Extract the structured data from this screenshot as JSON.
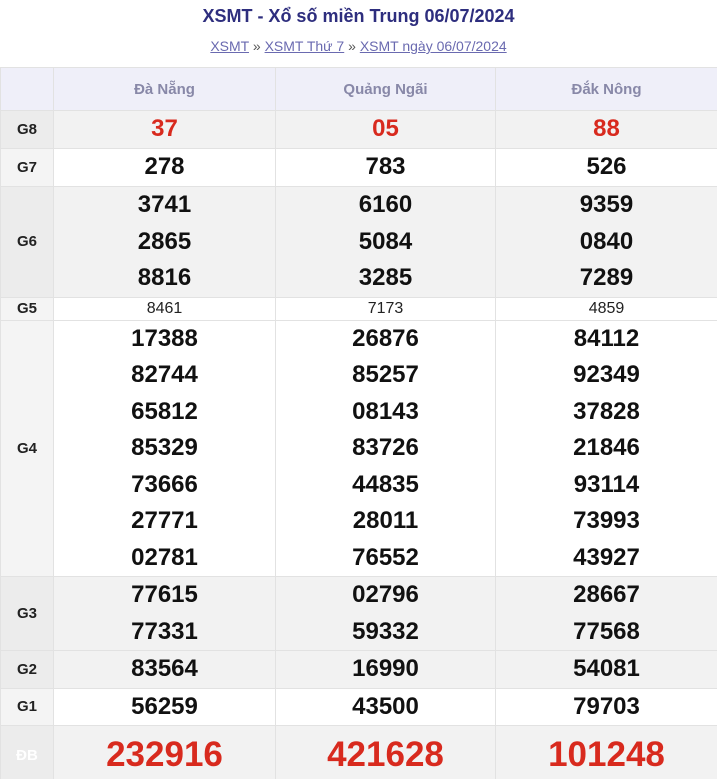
{
  "header": {
    "title": "XSMT - Xổ số miền Trung 06/07/2024",
    "breadcrumbs": [
      "XSMT",
      "XSMT Thứ 7",
      "XSMT ngày 06/07/2024"
    ]
  },
  "table": {
    "columns": [
      "Đà Nẵng",
      "Quảng Ngãi",
      "Đắk Nông"
    ],
    "rows": [
      {
        "label": "G8",
        "cells": [
          [
            "37"
          ],
          [
            "05"
          ],
          [
            "88"
          ]
        ]
      },
      {
        "label": "G7",
        "cells": [
          [
            "278"
          ],
          [
            "783"
          ],
          [
            "526"
          ]
        ]
      },
      {
        "label": "G6",
        "cells": [
          [
            "3741",
            "2865",
            "8816"
          ],
          [
            "6160",
            "5084",
            "3285"
          ],
          [
            "9359",
            "0840",
            "7289"
          ]
        ]
      },
      {
        "label": "G5",
        "cells": [
          [
            "8461"
          ],
          [
            "7173"
          ],
          [
            "4859"
          ]
        ]
      },
      {
        "label": "G4",
        "cells": [
          [
            "17388",
            "82744",
            "65812",
            "85329",
            "73666",
            "27771",
            "02781"
          ],
          [
            "26876",
            "85257",
            "08143",
            "83726",
            "44835",
            "28011",
            "76552"
          ],
          [
            "84112",
            "92349",
            "37828",
            "21846",
            "93114",
            "73993",
            "43927"
          ]
        ]
      },
      {
        "label": "G3",
        "cells": [
          [
            "77615",
            "77331"
          ],
          [
            "02796",
            "59332"
          ],
          [
            "28667",
            "77568"
          ]
        ]
      },
      {
        "label": "G2",
        "cells": [
          [
            "83564"
          ],
          [
            "16990"
          ],
          [
            "54081"
          ]
        ]
      },
      {
        "label": "G1",
        "cells": [
          [
            "56259"
          ],
          [
            "43500"
          ],
          [
            "79703"
          ]
        ]
      },
      {
        "label": "ĐB",
        "cells": [
          [
            "232916"
          ],
          [
            "421628"
          ],
          [
            "101248"
          ]
        ]
      }
    ]
  }
}
